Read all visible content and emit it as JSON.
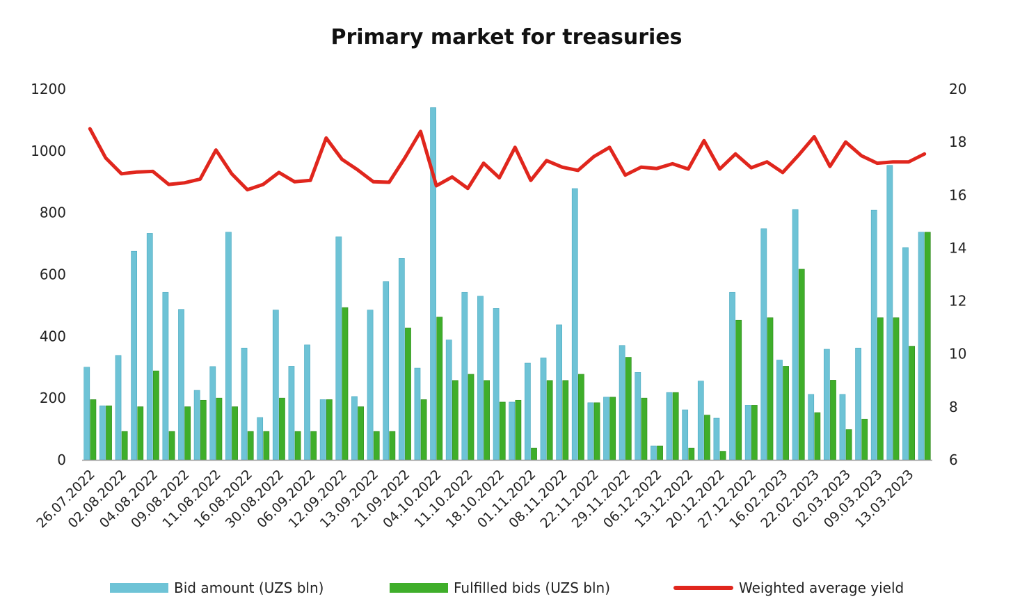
{
  "colors": {
    "bid": "#6ec3d6",
    "bid_stroke": "#4aa9c0",
    "fulfilled": "#3fae2a",
    "fulfilled_stroke": "#2e8a1c",
    "yield": "#e0261d",
    "axis": "#999999"
  },
  "chart_data": {
    "type": "bar",
    "title": "Primary market for treasuries",
    "ylim": [
      0,
      1200
    ],
    "y2lim": [
      6,
      20
    ],
    "yticks": [
      0,
      200,
      400,
      600,
      800,
      1000,
      1200
    ],
    "y2ticks": [
      6,
      8,
      10,
      12,
      14,
      16,
      18,
      20
    ],
    "legend_position": "bottom",
    "xtick_labels": [
      "26.07.2022",
      "02.08.2022",
      "04.08.2022",
      "09.08.2022",
      "11.08.2022",
      "16.08.2022",
      "30.08.2022",
      "06.09.2022",
      "12.09.2022",
      "13.09.2022",
      "21.09.2022",
      "04.10.2022",
      "11.10.2022",
      "18.10.2022",
      "01.11.2022",
      "08.11.2022",
      "22.11.2022",
      "29.11.2022",
      "06.12.2022",
      "13.12.2022",
      "20.12.2022",
      "27.12.2022",
      "16.02.2023",
      "22.02.2023",
      "02.03.2023",
      "09.03.2023",
      "13.03.2023"
    ],
    "series": [
      {
        "name": "Bid amount (UZS bln)",
        "kind": "bar",
        "values": [
          300,
          175,
          338,
          675,
          733,
          542,
          487,
          225,
          302,
          737,
          362,
          137,
          485,
          303,
          372,
          195,
          722,
          205,
          485,
          577,
          652,
          297,
          1140,
          388,
          542,
          530,
          490,
          187,
          313,
          330,
          437,
          878,
          185,
          203,
          370,
          283,
          45,
          218,
          162,
          255,
          135,
          542,
          177,
          748,
          323,
          810,
          212,
          358,
          212,
          362,
          808,
          953,
          687,
          737
        ]
      },
      {
        "name": "Fulfilled bids (UZS bln)",
        "kind": "bar",
        "values": [
          195,
          175,
          92,
          172,
          288,
          92,
          172,
          193,
          200,
          172,
          92,
          92,
          200,
          92,
          92,
          195,
          493,
          172,
          92,
          92,
          427,
          195,
          462,
          257,
          277,
          257,
          187,
          193,
          38,
          257,
          257,
          277,
          185,
          203,
          332,
          200,
          45,
          218,
          38,
          145,
          28,
          452,
          177,
          460,
          303,
          617,
          153,
          258,
          98,
          132,
          460,
          460,
          368,
          737
        ]
      },
      {
        "name": "Weighted average yield",
        "kind": "line",
        "axis": "right",
        "values": [
          18.5,
          17.4,
          16.8,
          16.87,
          16.89,
          16.4,
          16.46,
          16.6,
          17.7,
          16.8,
          16.2,
          16.4,
          16.85,
          16.5,
          16.55,
          18.15,
          17.35,
          16.95,
          16.5,
          16.48,
          17.4,
          18.4,
          16.35,
          16.68,
          16.25,
          17.2,
          16.65,
          17.8,
          16.55,
          17.3,
          17.05,
          16.93,
          17.45,
          17.8,
          16.75,
          17.05,
          17.0,
          17.18,
          16.98,
          18.05,
          16.98,
          17.55,
          17.03,
          17.25,
          16.85,
          17.5,
          18.2,
          17.08,
          18.0,
          17.48,
          17.2,
          17.25,
          17.25,
          17.55
        ]
      }
    ]
  }
}
